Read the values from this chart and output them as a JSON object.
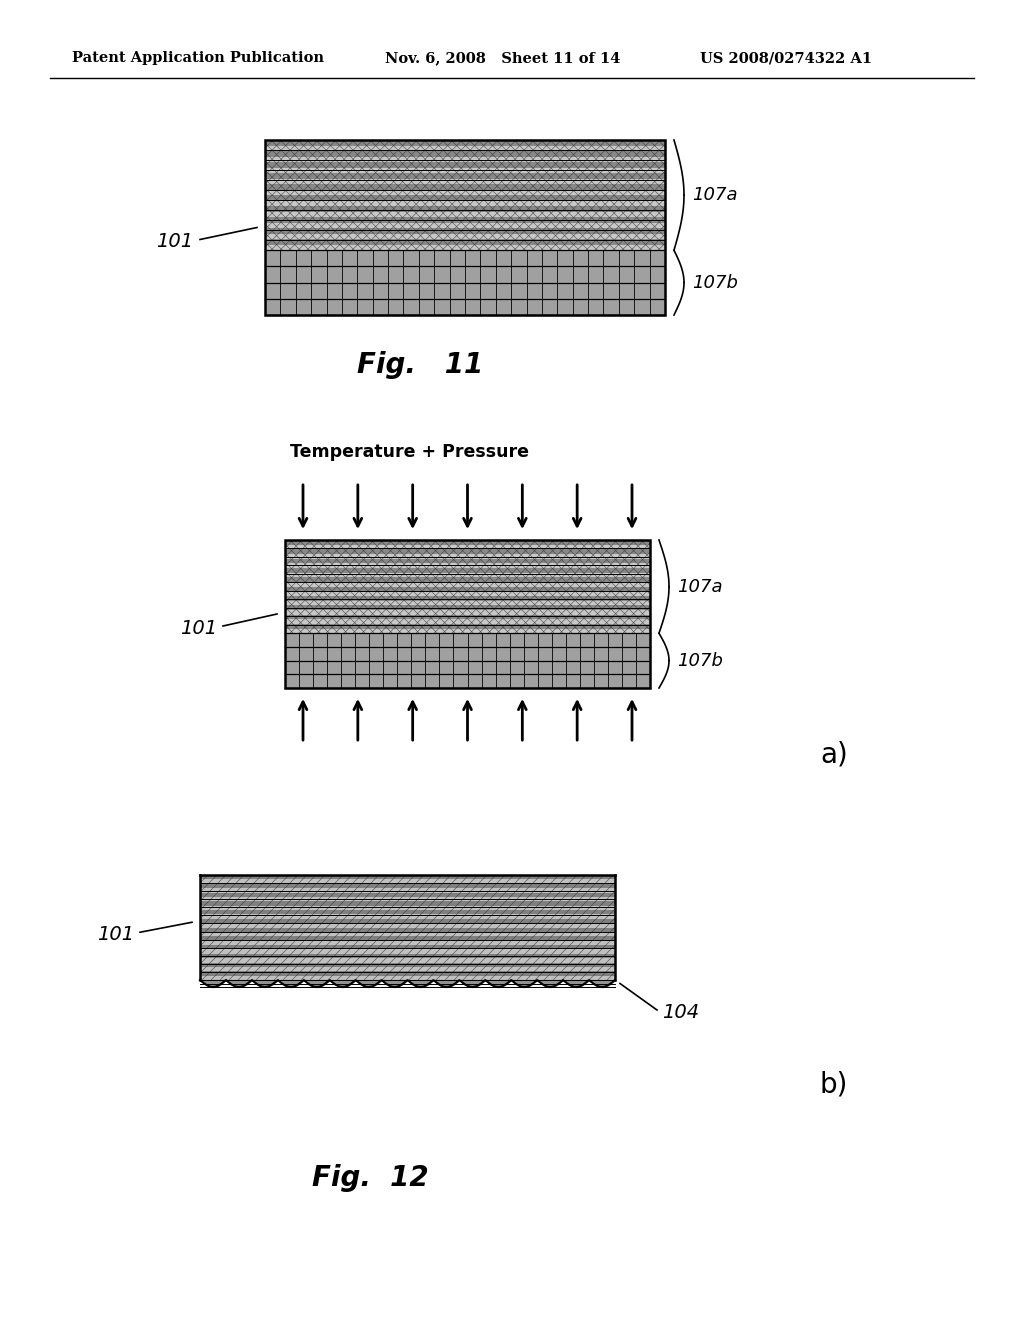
{
  "bg_color": "#ffffff",
  "header_left": "Patent Application Publication",
  "header_mid": "Nov. 6, 2008   Sheet 11 of 14",
  "header_right": "US 2008/0274322 A1",
  "fig11_label": "Fig.   11",
  "fig12_label": "Fig.  12",
  "label_101": "101",
  "label_107a": "107a",
  "label_107b": "107b",
  "label_104": "104",
  "label_temp": "Temperature + Pressure",
  "label_a": "a)",
  "label_b": "b)"
}
